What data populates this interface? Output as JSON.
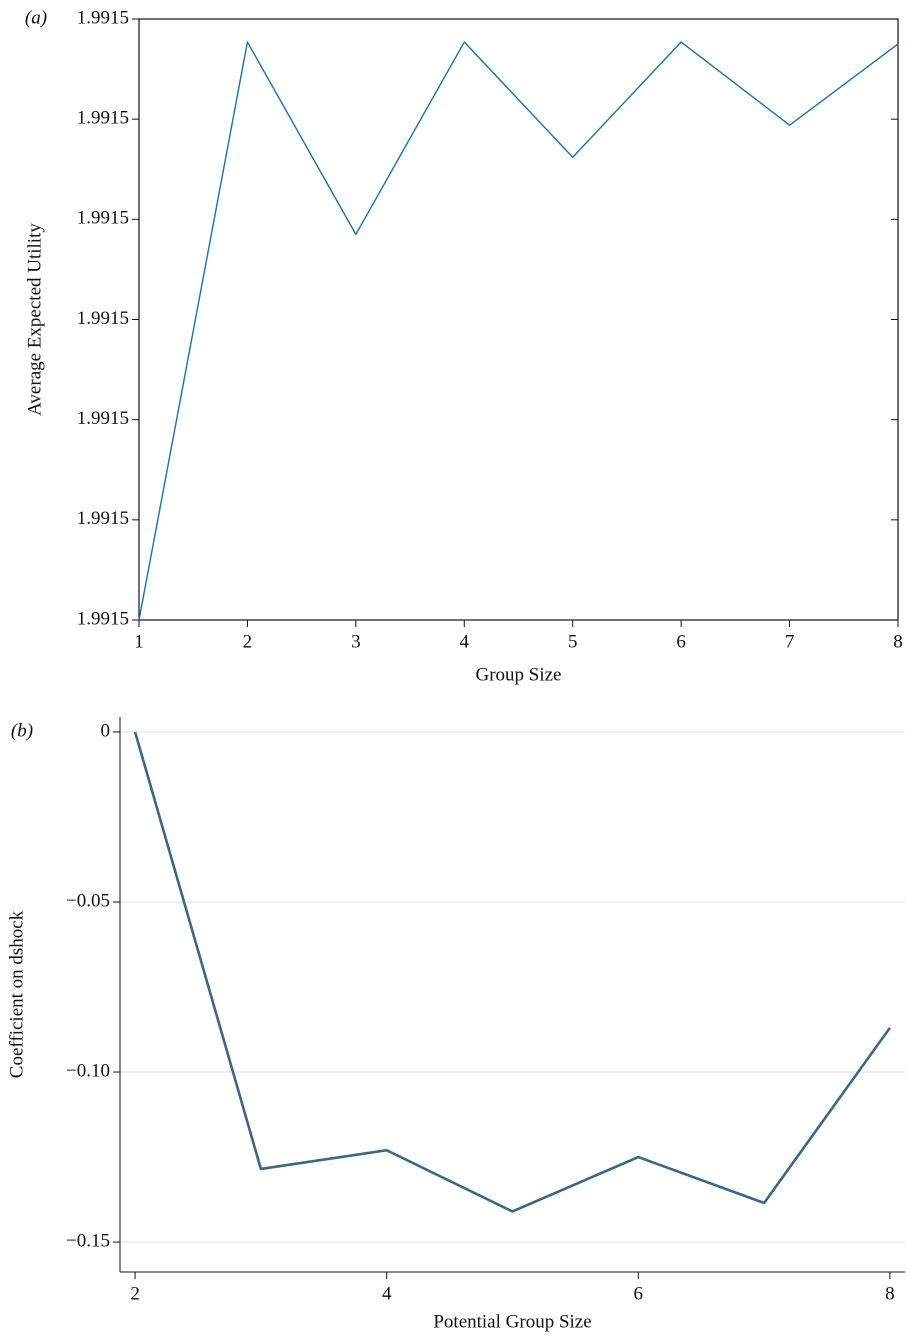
{
  "chart_data": [
    {
      "type": "line",
      "panel_label": "(a)",
      "xlabel": "Group Size",
      "ylabel": "Average Expected Utility",
      "x": [
        1,
        2,
        3,
        4,
        5,
        6,
        7,
        8
      ],
      "series": [
        {
          "color": "#1f6fae",
          "values": [
            1.99147,
            1.9915277,
            1.9915085,
            1.9915277,
            1.9915162,
            1.9915277,
            1.9915194,
            1.9915275
          ]
        }
      ],
      "xlim": [
        1,
        8
      ],
      "xticks": [
        1,
        2,
        3,
        4,
        5,
        6,
        7,
        8
      ],
      "ylim": [
        1.99147,
        1.99153
      ],
      "yticks": [
        {
          "value": 1.99147,
          "label": "1.9915"
        },
        {
          "value": 1.99148,
          "label": "1.9915"
        },
        {
          "value": 1.99149,
          "label": "1.9915"
        },
        {
          "value": 1.9915,
          "label": "1.9915"
        },
        {
          "value": 1.99151,
          "label": "1.9915"
        },
        {
          "value": 1.99152,
          "label": "1.9915"
        },
        {
          "value": 1.99153,
          "label": "1.9915"
        }
      ],
      "grid": false,
      "frame": true
    },
    {
      "type": "line",
      "panel_label": "(b)",
      "xlabel": "Potential Group Size",
      "ylabel": "Coefficient on dshock",
      "x": [
        2,
        3,
        4,
        5,
        6,
        7,
        8
      ],
      "series": [
        {
          "color": "#3e6583",
          "values": [
            0,
            -0.1285,
            -0.123,
            -0.141,
            -0.125,
            -0.1385,
            -0.087
          ]
        }
      ],
      "xlim": [
        1.88,
        8.12
      ],
      "xticks": [
        2,
        4,
        6,
        8
      ],
      "ylim": [
        -0.1588,
        0.0044
      ],
      "yticks": [
        0,
        {
          "value": -0.05,
          "label": "−0.05"
        },
        {
          "value": -0.1,
          "label": "−0.10"
        },
        {
          "value": -0.15,
          "label": "−0.15"
        }
      ],
      "grid": true,
      "frame": false
    }
  ]
}
